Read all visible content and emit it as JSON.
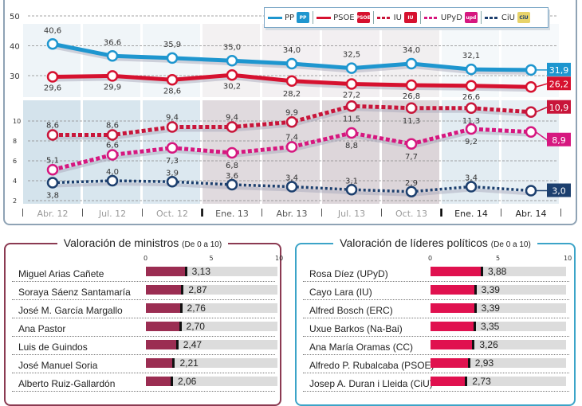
{
  "chart_data": [
    {
      "type": "line",
      "title": "",
      "x": [
        "Abr. 12",
        "Jul. 12",
        "Oct. 12",
        "Ene. 13",
        "Abr. 13",
        "Jul. 13",
        "Oct. 13",
        "Ene. 14",
        "Abr. 14"
      ],
      "upper_axis": {
        "ylim": [
          25,
          50
        ],
        "ticks": [
          "50",
          "40",
          "30"
        ]
      },
      "lower_axis": {
        "ylim": [
          2,
          12
        ],
        "ticks": [
          "10",
          "8",
          "6",
          "4",
          "2"
        ]
      },
      "series": [
        {
          "name": "PP",
          "color": "#1e96cf",
          "style": "solid",
          "axis": "upper",
          "values": [
            40.6,
            36.6,
            35.9,
            35.0,
            34.0,
            32.5,
            34.0,
            32.1,
            31.9
          ],
          "labels": [
            "40,6",
            "36,6",
            "35,9",
            "35,0",
            "34,0",
            "32,5",
            "34,0",
            "32,1",
            "31,9"
          ]
        },
        {
          "name": "PSOE",
          "color": "#d6112f",
          "style": "solid",
          "axis": "upper",
          "values": [
            29.6,
            29.9,
            28.6,
            30.2,
            28.2,
            27.2,
            26.8,
            26.6,
            26.2
          ],
          "labels": [
            "29,6",
            "29,9",
            "28,6",
            "30,2",
            "28,2",
            "27,2",
            "26,8",
            "26,6",
            "26,2"
          ]
        },
        {
          "name": "IU",
          "color": "#c8153a",
          "style": "dashed",
          "axis": "lower",
          "values": [
            8.6,
            8.6,
            9.4,
            9.4,
            9.9,
            11.5,
            11.3,
            11.3,
            10.9
          ],
          "labels": [
            "8,6",
            "8,6",
            "9,4",
            "9,4",
            "9,9",
            "11,5",
            "11,3",
            "11,3",
            "10,9"
          ]
        },
        {
          "name": "UPyD",
          "color": "#d6177f",
          "style": "dashed",
          "axis": "lower",
          "values": [
            5.1,
            6.6,
            7.3,
            6.8,
            7.4,
            8.8,
            7.7,
            9.2,
            8.9
          ],
          "labels": [
            "5,1",
            "6,6",
            "7,3",
            "6,8",
            "7,4",
            "8,8",
            "7,7",
            "9,2",
            "8,9"
          ]
        },
        {
          "name": "CiU",
          "color": "#1c3f6e",
          "style": "dotted",
          "axis": "lower",
          "values": [
            3.8,
            4.0,
            3.9,
            3.6,
            3.4,
            3.1,
            2.9,
            3.4,
            3.0
          ],
          "labels": [
            "3,8",
            "4,0",
            "3,9",
            "3,6",
            "3,4",
            "3,1",
            "2,9",
            "3,4",
            "3,0"
          ]
        }
      ],
      "legend": "top-right"
    },
    {
      "type": "bar",
      "title": "Valoración de ministros",
      "subtitle": "(De 0 a 10)",
      "xlim": [
        0,
        10
      ],
      "ticks": [
        "0",
        "5",
        "10"
      ],
      "color": "#9b2d52",
      "categories": [
        "Miguel Arias Cañete",
        "Soraya Sáenz Santamaría",
        "José M. García Margallo",
        "Ana Pastor",
        "Luis de Guindos",
        "José Manuel Soria",
        "Alberto Ruiz-Gallardón"
      ],
      "values": [
        3.13,
        2.87,
        2.76,
        2.7,
        2.47,
        2.21,
        2.06
      ],
      "labels": [
        "3,13",
        "2,87",
        "2,76",
        "2,70",
        "2,47",
        "2,21",
        "2,06"
      ]
    },
    {
      "type": "bar",
      "title": "Valoración de líderes políticos",
      "subtitle": "(De 0 a 10)",
      "xlim": [
        0,
        10
      ],
      "ticks": [
        "0",
        "5",
        "10"
      ],
      "color": "#e0114f",
      "categories": [
        "Rosa Díez (UPyD)",
        "Cayo Lara (IU)",
        "Alfred Bosch (ERC)",
        "Uxue Barkos (Na-Bai)",
        "Ana María Oramas (CC)",
        "Alfredo P. Rubalcaba (PSOE)",
        "Josep A. Duran i Lleida (CiU)"
      ],
      "values": [
        3.88,
        3.39,
        3.39,
        3.35,
        3.26,
        2.93,
        2.73
      ],
      "labels": [
        "3,88",
        "3,39",
        "3,39",
        "3,35",
        "3,26",
        "2,93",
        "2,73"
      ]
    }
  ],
  "legend_items": [
    {
      "name": "PP",
      "logo": "PP"
    },
    {
      "name": "PSOE",
      "logo": "PSOE"
    },
    {
      "name": "IU",
      "logo": "IU"
    },
    {
      "name": "UPyD",
      "logo": "upd"
    },
    {
      "name": "CiU",
      "logo": "CiU"
    }
  ]
}
